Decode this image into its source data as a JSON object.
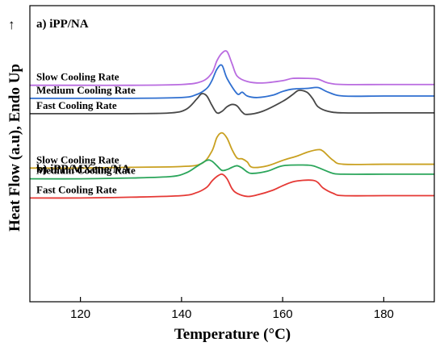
{
  "chart_data": {
    "type": "line",
    "xlabel": "Temperature (°C)",
    "ylabel": "Heat Flow (a.u), Endo Up",
    "xlim": [
      110,
      190
    ],
    "xticks": [
      120,
      140,
      160,
      180
    ],
    "grid": false,
    "arrow_glyph": "↑",
    "panels": [
      {
        "label": "a) iPP/NA",
        "series": [
          {
            "name": "Slow Cooling Rate",
            "color": "#b96be0",
            "x": [
              110,
              120,
              130,
              140,
              144,
              146,
              147,
              148,
              149,
              150,
              151,
              153,
              156,
              160,
              162,
              165,
              167,
              169,
              172,
              180,
              190
            ],
            "y": [
              7.4,
              7.4,
              7.4,
              7.5,
              7.9,
              9.0,
              10.6,
              11.6,
              11.8,
              10.2,
              8.6,
              7.9,
              7.7,
              8.0,
              8.3,
              8.3,
              8.2,
              7.7,
              7.5,
              7.5,
              7.5
            ]
          },
          {
            "name": "Medium Cooling Rate",
            "color": "#2f6fd0",
            "x": [
              110,
              120,
              130,
              140,
              143,
              145,
              146,
              147,
              148,
              149,
              151,
              152,
              153,
              155,
              158,
              160,
              162,
              165,
              167,
              169,
              172,
              180,
              190
            ],
            "y": [
              5.7,
              5.7,
              5.7,
              5.8,
              6.2,
              7.0,
              8.0,
              9.5,
              10.0,
              8.3,
              6.3,
              6.5,
              6.0,
              5.8,
              6.1,
              6.6,
              6.9,
              7.0,
              7.1,
              6.5,
              6.0,
              6.0,
              6.0
            ]
          },
          {
            "name": "Fast Cooling Rate",
            "color": "#474747",
            "x": [
              110,
              120,
              130,
              138,
              141,
              143,
              144,
              145,
              146,
              147,
              148,
              149,
              150,
              151,
              152,
              153,
              156,
              160,
              162,
              163,
              164,
              165,
              166,
              167,
              169,
              172,
              180,
              190
            ],
            "y": [
              3.7,
              3.7,
              3.7,
              3.8,
              4.3,
              5.6,
              6.3,
              6.0,
              4.8,
              3.8,
              4.0,
              4.6,
              4.9,
              4.7,
              3.9,
              3.6,
              4.0,
              5.3,
              6.2,
              6.7,
              6.7,
              6.4,
              5.6,
              4.6,
              4.0,
              3.8,
              3.8,
              3.8
            ]
          }
        ]
      },
      {
        "label": "b) iPP/MXene/NA",
        "series": [
          {
            "name": "Slow Cooling Rate",
            "color": "#c9a020",
            "x": [
              110,
              120,
              130,
              140,
              144,
              146,
              147,
              148,
              149,
              150,
              151,
              152,
              153,
              154,
              157,
              160,
              163,
              165,
              167,
              168,
              170,
              172,
              180,
              190
            ],
            "y": [
              -3.4,
              -3.4,
              -3.3,
              -3.2,
              -2.8,
              -1.2,
              0.6,
              1.2,
              0.5,
              -1.0,
              -2.1,
              -2.2,
              -2.6,
              -3.3,
              -3.1,
              -2.4,
              -1.8,
              -1.3,
              -1.0,
              -1.2,
              -2.4,
              -2.9,
              -2.9,
              -2.9
            ]
          },
          {
            "name": "Medium Cooling Rate",
            "color": "#2aa55a",
            "x": [
              110,
              120,
              130,
              138,
              141,
              143,
              145,
              146,
              147,
              148,
              149,
              150,
              151,
              152,
              153,
              154,
              157,
              160,
              164,
              166,
              168,
              170,
              172,
              180,
              190
            ],
            "y": [
              -4.8,
              -4.8,
              -4.7,
              -4.5,
              -4.0,
              -3.2,
              -2.4,
              -2.5,
              -3.1,
              -3.7,
              -3.6,
              -3.3,
              -3.1,
              -3.4,
              -3.9,
              -4.1,
              -3.8,
              -3.1,
              -3.0,
              -3.1,
              -3.6,
              -4.1,
              -4.2,
              -4.2,
              -4.2
            ]
          },
          {
            "name": "Fast Cooling Rate",
            "color": "#e53935",
            "x": [
              110,
              120,
              130,
              140,
              143,
              145,
              146,
              147,
              148,
              149,
              150,
              151,
              153,
              155,
              158,
              160,
              162,
              164,
              166,
              167,
              168,
              170,
              172,
              180,
              190
            ],
            "y": [
              -7.3,
              -7.3,
              -7.2,
              -7.0,
              -6.6,
              -5.9,
              -5.1,
              -4.5,
              -4.2,
              -4.8,
              -6.1,
              -6.7,
              -7.1,
              -6.9,
              -6.3,
              -5.7,
              -5.2,
              -5.0,
              -5.0,
              -5.3,
              -6.0,
              -6.7,
              -7.0,
              -7.0,
              -7.0
            ]
          }
        ]
      }
    ]
  }
}
